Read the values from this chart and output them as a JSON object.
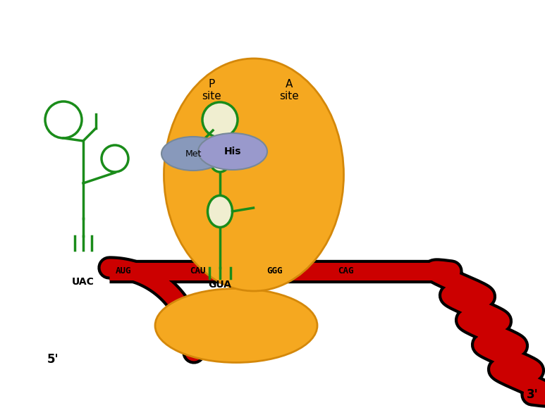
{
  "fig_w": 7.73,
  "fig_h": 5.79,
  "bg_color": "#ffffff",
  "ribosome_color": "#F5A820",
  "ribosome_edge": "#D4880A",
  "mrna_color": "#CC0000",
  "mrna_black": "#000000",
  "green": "#1A8C1A",
  "met_color": "#8899BB",
  "his_color": "#9999CC",
  "met_label": "Met",
  "his_label": "His",
  "p_site_label": "P\nsite",
  "a_site_label": "A\nsite",
  "gua_label": "GUA",
  "uac_label": "UAC",
  "codon_labels": [
    "AUG",
    "CAU",
    "GGG",
    "CAG"
  ],
  "label_5prime": "5'",
  "label_3prime": "3'"
}
